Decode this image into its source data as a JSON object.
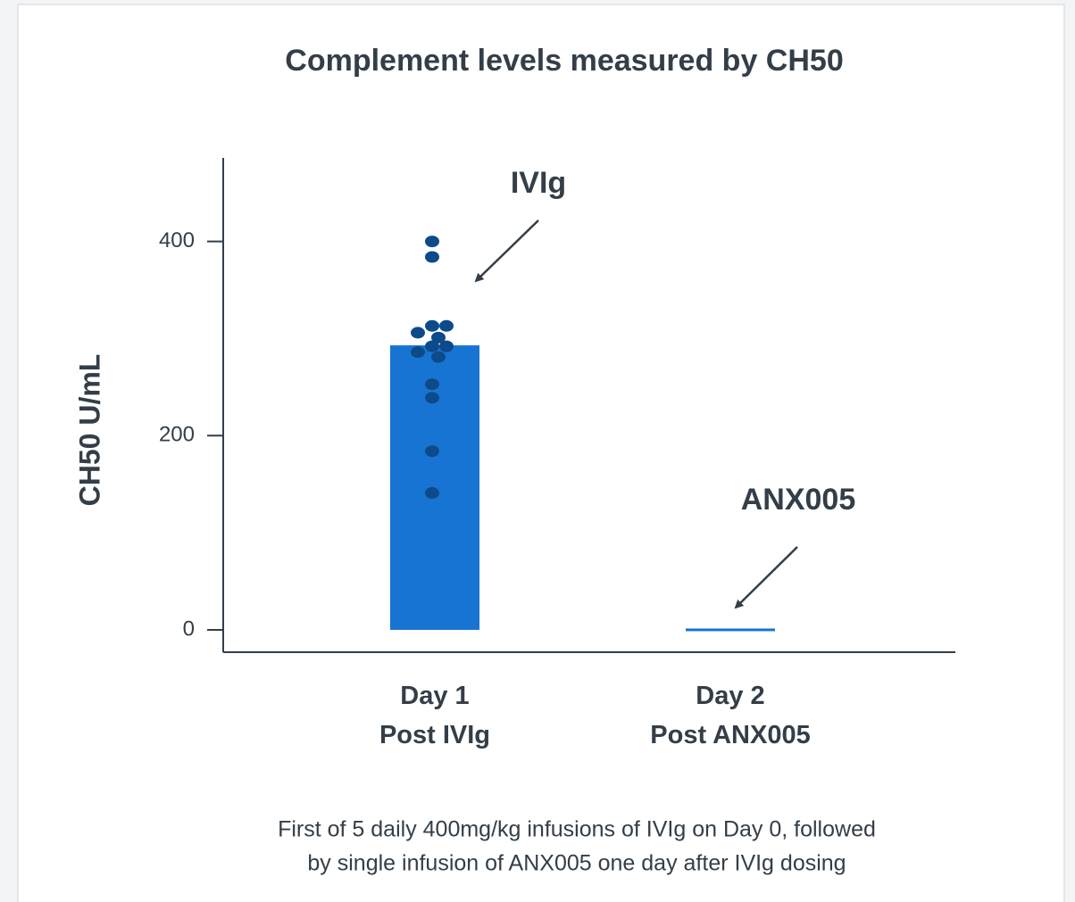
{
  "chart_data": {
    "type": "bar",
    "title": "Complement levels measured by CH50",
    "y_label": "CH50 U/mL",
    "categories": [
      "Day 1\nPost IVIg",
      "Day 2\nPost ANX005"
    ],
    "values": [
      293,
      0
    ],
    "color": "#1874d2",
    "points": {
      "category": 0,
      "color": "#0d4a8a",
      "values": [
        400,
        384,
        306,
        313,
        313,
        301,
        292,
        292,
        286,
        281,
        253,
        239,
        184,
        141
      ]
    },
    "ylim": [
      -23,
      486
    ],
    "yticks": [
      0,
      200,
      400
    ],
    "annotations": [
      "IVIg",
      "ANX005"
    ],
    "footnote": [
      "First of 5 daily 400mg/kg infusions of IVIg on Day 0, followed",
      "by single infusion of ANX005 one day after IVIg dosing"
    ]
  }
}
